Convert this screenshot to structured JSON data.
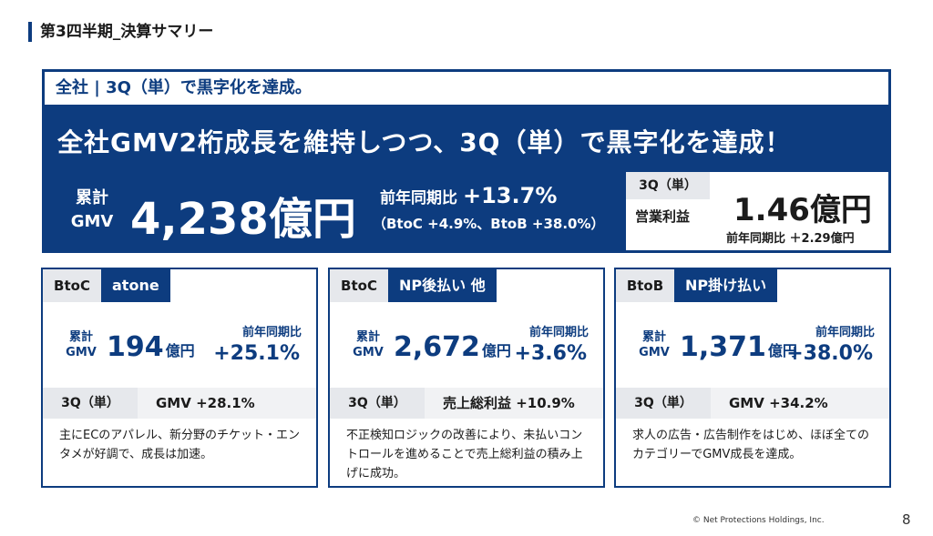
{
  "slide_title": "第3四半期_決算サマリー",
  "banner": {
    "heading": "全社 | 3Q（単）で黒字化を達成。",
    "main_text": "全社GMV2桁成長を維持しつつ、3Q（単）で黒字化を達成！",
    "gmv_label_line1": "累計",
    "gmv_label_line2": "GMV",
    "gmv_value": "4,238億円",
    "yoy_label": "前年同期比",
    "yoy_value": "+13.7%",
    "yoy_breakdown": "（BtoC +4.9%、BtoB +38.0%）",
    "op": {
      "tag": "3Q（単）",
      "label": "営業利益",
      "value": "1.46億円",
      "yoy": "前年同期比 ＋2.29億円"
    }
  },
  "cards": [
    {
      "tag1": "BtoC",
      "tag2": "atone",
      "gmv_label_line1": "累計",
      "gmv_label_line2": "GMV",
      "gmv_value": "194",
      "gmv_unit": "億円",
      "yoy_label": "前年同期比",
      "yoy_value": "+25.1%",
      "q_tag": "3Q（単）",
      "q_value": "GMV +28.1%",
      "description": "主にECのアパレル、新分野のチケット・エンタメが好調で、成長は加速。"
    },
    {
      "tag1": "BtoC",
      "tag2": "NP後払い 他",
      "gmv_label_line1": "累計",
      "gmv_label_line2": "GMV",
      "gmv_value": "2,672",
      "gmv_unit": "億円",
      "yoy_label": "前年同期比",
      "yoy_value": "+3.6%",
      "q_tag": "3Q（単）",
      "q_value": "売上総利益 +10.9%",
      "description": "不正検知ロジックの改善により、未払いコントロールを進めることで売上総利益の積み上げに成功。"
    },
    {
      "tag1": "BtoB",
      "tag2": "NP掛け払い",
      "gmv_label_line1": "累計",
      "gmv_label_line2": "GMV",
      "gmv_value": "1,371",
      "gmv_unit": "億円",
      "yoy_label": "前年同期比",
      "yoy_value": "+38.0%",
      "q_tag": "3Q（単）",
      "q_value": "GMV +34.2%",
      "description": "求人の広告・広告制作をはじめ、ほぼ全てのカテゴリーでGMV成長を達成。"
    }
  ],
  "footer": {
    "copyright": "© Net Protections Holdings, Inc.",
    "page_number": "8"
  },
  "colors": {
    "brand": "#0d3c7f",
    "tag_gray": "#e6e8ec"
  }
}
